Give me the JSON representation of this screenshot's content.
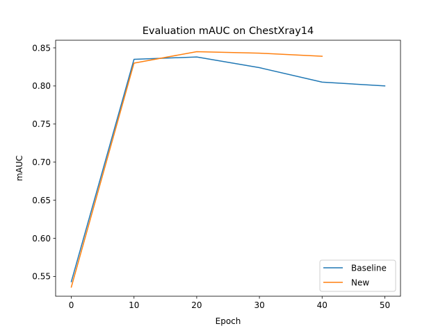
{
  "chart_data": {
    "type": "line",
    "title": "Evaluation mAUC on ChestXray14",
    "xlabel": "Epoch",
    "ylabel": "mAUC",
    "xlim": [
      -2.5,
      52.5
    ],
    "ylim": [
      0.524,
      0.86
    ],
    "xticks": [
      0,
      10,
      20,
      30,
      40,
      50
    ],
    "xtick_labels": [
      "0",
      "10",
      "20",
      "30",
      "40",
      "50"
    ],
    "yticks": [
      0.55,
      0.6,
      0.65,
      0.7,
      0.75,
      0.8,
      0.85
    ],
    "ytick_labels": [
      "0.55",
      "0.60",
      "0.65",
      "0.70",
      "0.75",
      "0.80",
      "0.85"
    ],
    "grid": false,
    "legend_position": "lower-right",
    "series": [
      {
        "name": "Baseline",
        "color": "#1f77b4",
        "x": [
          0,
          10,
          20,
          30,
          40,
          50
        ],
        "values": [
          0.543,
          0.835,
          0.838,
          0.824,
          0.805,
          0.8
        ]
      },
      {
        "name": "New",
        "color": "#ff7f0e",
        "x": [
          0,
          10,
          20,
          30,
          40
        ],
        "values": [
          0.536,
          0.83,
          0.845,
          0.843,
          0.839
        ]
      }
    ]
  }
}
